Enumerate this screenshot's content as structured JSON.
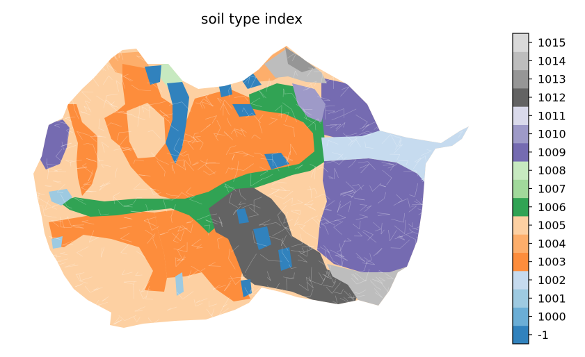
{
  "figure": {
    "title": "soil type index"
  },
  "colorbar": {
    "levels": [
      {
        "label": "-1",
        "color": "#3182bd"
      },
      {
        "label": "1000",
        "color": "#6baed6"
      },
      {
        "label": "1001",
        "color": "#9ecae1"
      },
      {
        "label": "1002",
        "color": "#c6dbef"
      },
      {
        "label": "1003",
        "color": "#fd8d3c"
      },
      {
        "label": "1004",
        "color": "#fdae6b"
      },
      {
        "label": "1005",
        "color": "#fdd0a2"
      },
      {
        "label": "1006",
        "color": "#31a354"
      },
      {
        "label": "1007",
        "color": "#a1d99b"
      },
      {
        "label": "1008",
        "color": "#c7e9c0"
      },
      {
        "label": "1009",
        "color": "#756bb1"
      },
      {
        "label": "1010",
        "color": "#9e9ac8"
      },
      {
        "label": "1011",
        "color": "#dadaeb"
      },
      {
        "label": "1012",
        "color": "#636363"
      },
      {
        "label": "1013",
        "color": "#969696"
      },
      {
        "label": "1014",
        "color": "#bdbdbd"
      },
      {
        "label": "1015",
        "color": "#d9d9d9"
      }
    ]
  },
  "map": {
    "regions": [
      "1005 west and south lowlands",
      "1003 central uplands",
      "1006 river corridor",
      "1009 eastern basin",
      "1012 southern outcrop",
      "1014 southeast fringe",
      "1002 eastern channel",
      "-1 scattered patches"
    ]
  }
}
